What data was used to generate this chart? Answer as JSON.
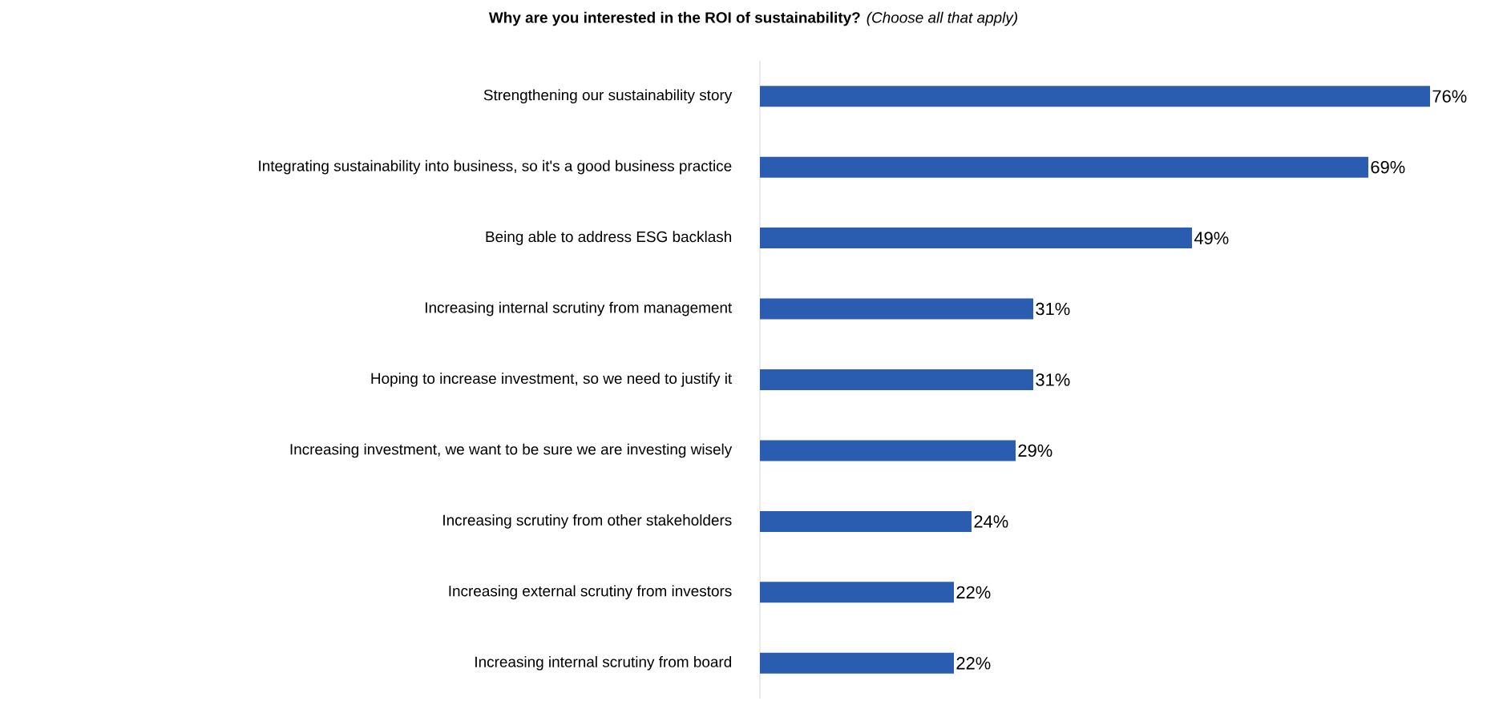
{
  "chart_data": {
    "type": "bar",
    "orientation": "horizontal",
    "title": "**Why are you interested in the ROI of sustainability?** *(Choose all that apply)*",
    "categories": [
      "Strengthening our sustainability story",
      "Integrating sustainability into business, so it's a good business practice",
      "Being able to address ESG backlash",
      "Increasing internal scrutiny from management",
      "Hoping to increase investment, so we need to justify it",
      "Increasing investment, we want to be sure we are investing wisely",
      "Increasing scrutiny from other stakeholders",
      "Increasing external scrutiny from investors",
      "Increasing internal scrutiny from board"
    ],
    "values": [
      76,
      69,
      49,
      31,
      31,
      29,
      24,
      22,
      22
    ],
    "value_labels": [
      "76%",
      "69%",
      "49%",
      "31%",
      "31%",
      "29%",
      "24%",
      "22%",
      "22%"
    ],
    "color": "#2a5db0",
    "xlim": [
      0,
      76
    ],
    "tick_labels": "y"
  }
}
